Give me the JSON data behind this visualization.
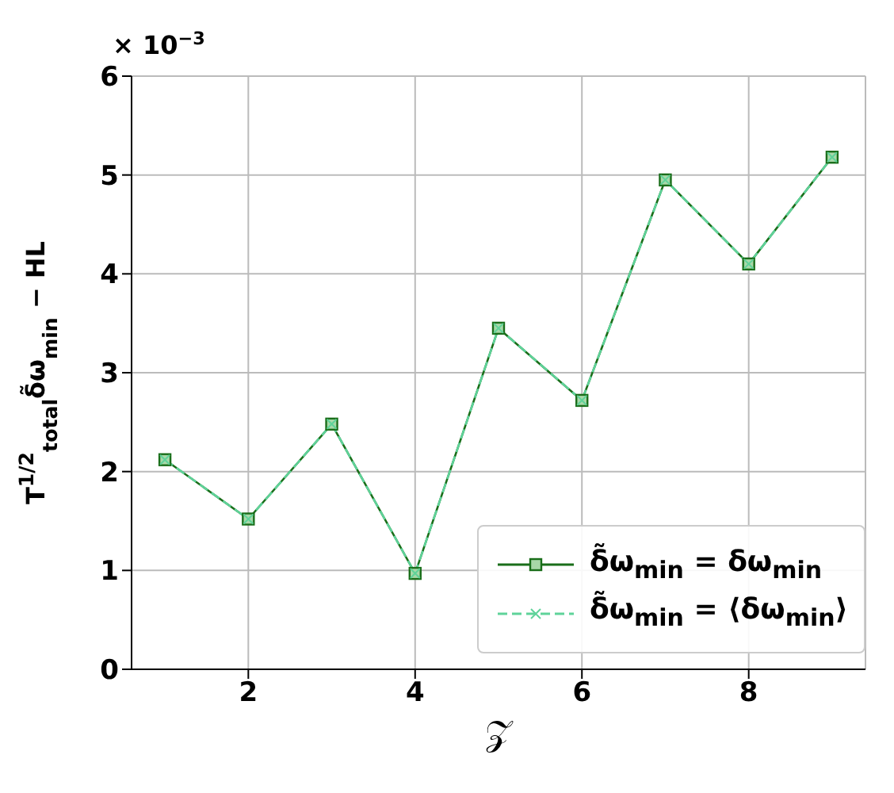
{
  "chart_data": {
    "type": "line",
    "xlabel": "𝒵",
    "ylabel": "T$^{1/2}$$_{total}$δ̃ω$_{min}$ − HL",
    "annotations": [
      "× 10$^{−3}$"
    ],
    "x": [
      1,
      2,
      3,
      4,
      5,
      6,
      7,
      8,
      9
    ],
    "xlim": [
      0.6,
      9.4
    ],
    "xticks": [
      2,
      4,
      6,
      8
    ],
    "ylim": [
      0,
      6
    ],
    "yticks": [
      0,
      1,
      2,
      3,
      4,
      5,
      6
    ],
    "grid": true,
    "legend": "bottom right",
    "series": [
      {
        "name": "δ̃ω$_{min}$ = δω$_{min}$",
        "color": "#1a6e1a",
        "values": [
          2.12,
          1.52,
          2.48,
          0.97,
          3.45,
          2.72,
          4.95,
          4.1,
          5.18
        ],
        "marker": "square",
        "line_style": "solid"
      },
      {
        "name": "δ̃ω$_{min}$ = ⟨δω$_{min}$⟩",
        "color": "#5fd39a",
        "values": [
          2.12,
          1.52,
          2.48,
          0.97,
          3.45,
          2.72,
          4.95,
          4.1,
          5.18
        ],
        "marker": "cross",
        "line_style": "dashed"
      }
    ]
  }
}
